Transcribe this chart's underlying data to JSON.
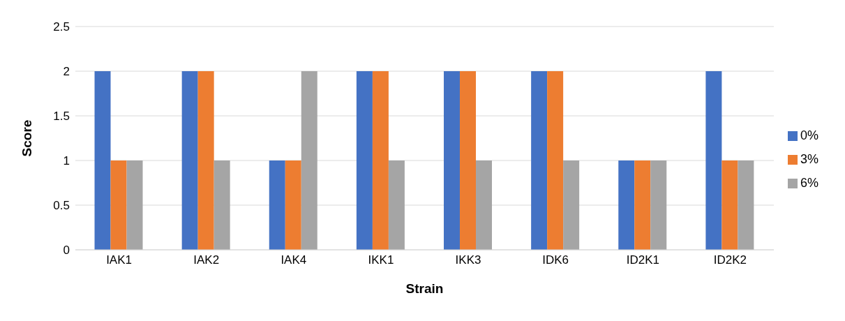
{
  "chart_data": {
    "type": "bar",
    "xlabel": "Strain",
    "ylabel": "Score",
    "categories": [
      "IAK1",
      "IAK2",
      "IAK4",
      "IKK1",
      "IKK3",
      "IDK6",
      "ID2K1",
      "ID2K2"
    ],
    "series": [
      {
        "name": "0%",
        "color": "#4472c4",
        "values": [
          2,
          2,
          1,
          2,
          2,
          2,
          1,
          2
        ]
      },
      {
        "name": "3%",
        "color": "#ed7d31",
        "values": [
          1,
          2,
          1,
          2,
          2,
          2,
          1,
          1
        ]
      },
      {
        "name": "6%",
        "color": "#a5a5a5",
        "values": [
          1,
          1,
          2,
          1,
          1,
          1,
          1,
          1
        ]
      }
    ],
    "ylim": [
      0,
      2.5
    ],
    "yticks": [
      0,
      0.5,
      1,
      1.5,
      2,
      2.5
    ],
    "grid": "y",
    "legend": "right"
  }
}
